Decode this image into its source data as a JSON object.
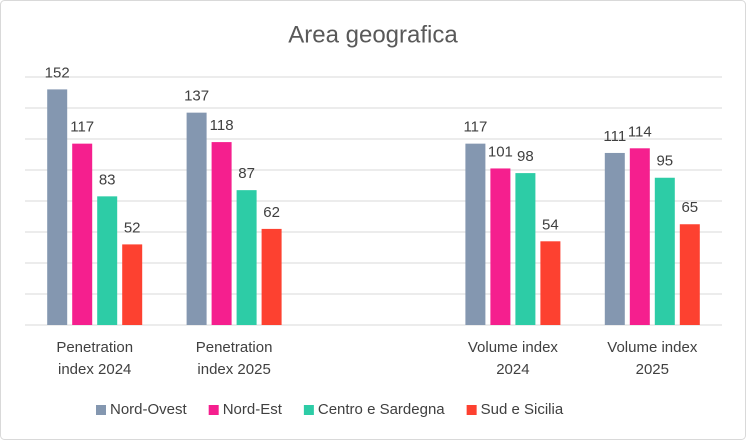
{
  "chart_data": {
    "type": "bar",
    "title": "Area geografica",
    "categories": [
      "Penetration index 2024",
      "Penetration index 2025",
      null,
      "Volume index 2024",
      "Volume index 2025"
    ],
    "series": [
      {
        "name": "Nord-Ovest",
        "color": "#8497b0",
        "values": [
          152,
          137,
          null,
          117,
          111
        ]
      },
      {
        "name": "Nord-Est",
        "color": "#f51f8e",
        "values": [
          117,
          118,
          null,
          101,
          114
        ]
      },
      {
        "name": "Centro e Sardegna",
        "color": "#2dcca6",
        "values": [
          83,
          87,
          null,
          98,
          95
        ]
      },
      {
        "name": "Sud e Sicilia",
        "color": "#fd4130",
        "values": [
          52,
          62,
          null,
          54,
          65
        ]
      }
    ],
    "ylim": [
      0,
      160
    ],
    "yticks": [
      0,
      20,
      40,
      60,
      80,
      100,
      120,
      140,
      160
    ],
    "grid": true,
    "legend": "bottom"
  }
}
